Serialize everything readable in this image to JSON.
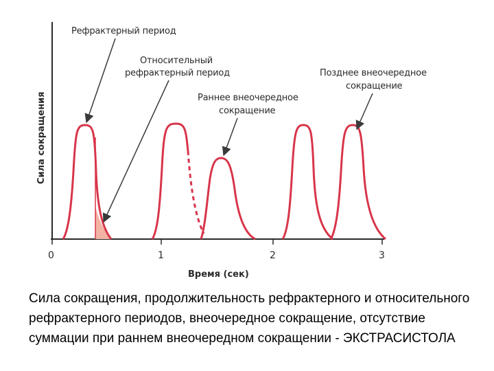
{
  "diagram": {
    "y_axis_label": "Сила сокращения",
    "x_axis_label": "Время (сек)",
    "x_ticks": [
      "0",
      "1",
      "2",
      "3"
    ],
    "annotations": {
      "refractory_period": "Рефрактерный период",
      "relative_refractory_line1": "Относительный",
      "relative_refractory_line2": "рефрактерный период",
      "early_extra_line1": "Раннее внеочередное",
      "early_extra_line2": "сокращение",
      "late_extra_line1": "Позднее внеочередное",
      "late_extra_line2": "сокращение"
    },
    "colors": {
      "curve": "#d8354a",
      "refractory_fill": "#f3b3a4",
      "axis": "#2a2a2a",
      "arrow": "#3a3a3a"
    }
  },
  "caption": "Сила сокращения, продолжительность рефрактерного и относительного рефрактерного периодов, внеочередное сокращение, отсутствие суммации при раннем внеочередном сокращении - ЭКСТРАСИСТОЛА"
}
